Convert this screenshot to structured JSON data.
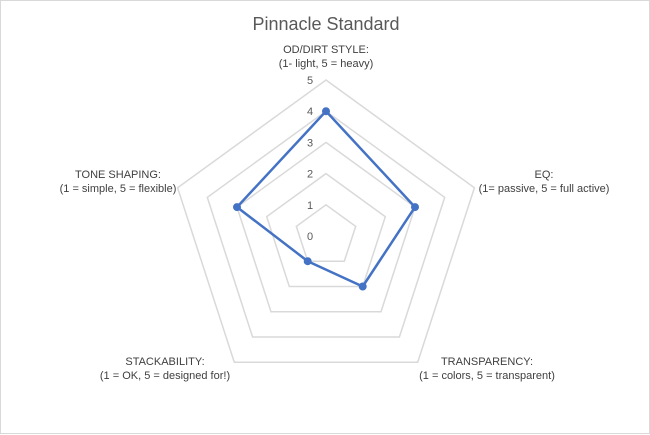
{
  "chart_data": {
    "type": "radar",
    "title": "Pinnacle Standard",
    "rlim": [
      0,
      5
    ],
    "ticks": [
      "0",
      "1",
      "2",
      "3",
      "4",
      "5"
    ],
    "axes": [
      {
        "name": "OD/DIRT STYLE:",
        "desc": "(1- light, 5 = heavy)"
      },
      {
        "name": "EQ:",
        "desc": "(1= passive, 5 = full active)"
      },
      {
        "name": "TRANSPARENCY:",
        "desc": "(1 = colors, 5 = transparent)"
      },
      {
        "name": "STACKABILITY:",
        "desc": "(1 = OK, 5 = designed for!)"
      },
      {
        "name": "TONE SHAPING:",
        "desc": "(1 = simple, 5 = flexible)"
      }
    ],
    "series": [
      {
        "values": [
          4,
          3,
          2,
          1,
          3
        ],
        "color": "#4472c4"
      }
    ],
    "grid_color": "#d9d9d9",
    "legend": "none"
  }
}
